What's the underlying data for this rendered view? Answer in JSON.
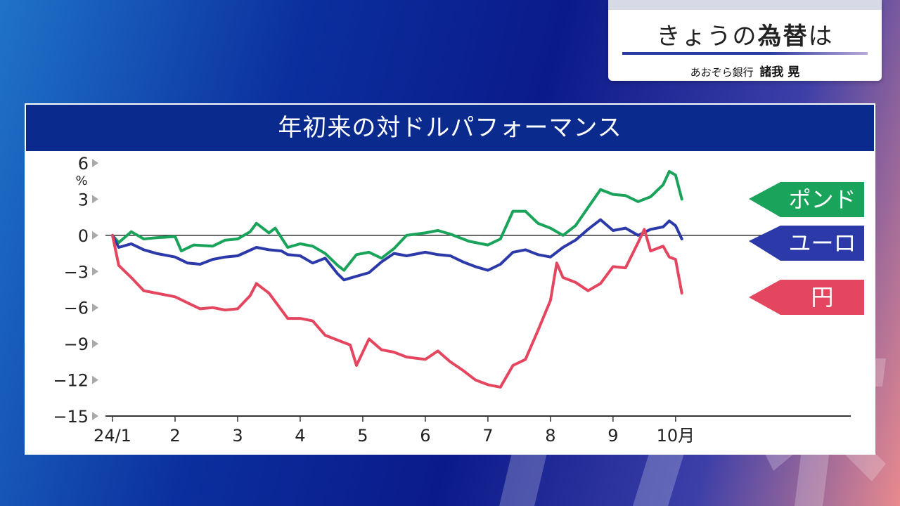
{
  "topic": {
    "title_plain1": "きょうの",
    "title_bold": "為替",
    "title_plain2": "は",
    "bank": "あおぞら銀行",
    "person": "諸我 晃"
  },
  "chart_data": {
    "type": "line",
    "title": "年初来の対ドルパフォーマンス",
    "ylabel": "%",
    "ylim": [
      -15,
      6
    ],
    "yticks": [
      6,
      3,
      0,
      -3,
      -6,
      -9,
      -12,
      -15
    ],
    "ytick_labels": [
      "6",
      "3",
      "0",
      "−3",
      "−6",
      "−9",
      "−12",
      "−15"
    ],
    "x_tick_labels": [
      "24/1",
      "2",
      "3",
      "4",
      "5",
      "6",
      "7",
      "8",
      "9",
      "10月"
    ],
    "x_tick_positions": [
      1.0,
      2.0,
      3.0,
      4.0,
      5.0,
      6.0,
      7.0,
      8.0,
      9.0,
      10.0
    ],
    "xlim": [
      1.0,
      12.8
    ],
    "series": [
      {
        "name": "ポンド",
        "color": "#1aa35a",
        "x": [
          1.0,
          1.1,
          1.3,
          1.5,
          1.7,
          2.0,
          2.1,
          2.3,
          2.6,
          2.8,
          3.0,
          3.2,
          3.3,
          3.5,
          3.6,
          3.8,
          4.0,
          4.2,
          4.4,
          4.6,
          4.7,
          4.9,
          5.1,
          5.3,
          5.5,
          5.7,
          6.0,
          6.2,
          6.4,
          6.7,
          7.0,
          7.2,
          7.4,
          7.6,
          7.8,
          8.0,
          8.2,
          8.4,
          8.6,
          8.8,
          9.0,
          9.2,
          9.4,
          9.6,
          9.8,
          9.9,
          10.0,
          10.1
        ],
        "values": [
          0.0,
          -0.6,
          0.3,
          -0.3,
          -0.2,
          -0.1,
          -1.3,
          -0.8,
          -0.9,
          -0.4,
          -0.3,
          0.3,
          1.0,
          0.2,
          0.6,
          -1.0,
          -0.7,
          -0.9,
          -1.5,
          -2.5,
          -2.9,
          -1.6,
          -1.4,
          -1.9,
          -1.1,
          0.0,
          0.2,
          0.4,
          0.1,
          -0.5,
          -0.8,
          -0.3,
          2.0,
          2.0,
          1.0,
          0.6,
          0.0,
          0.8,
          2.3,
          3.8,
          3.4,
          3.3,
          2.8,
          3.2,
          4.2,
          5.3,
          5.0,
          3.0
        ]
      },
      {
        "name": "ユーロ",
        "color": "#2c39a8",
        "x": [
          1.0,
          1.1,
          1.3,
          1.5,
          1.7,
          2.0,
          2.2,
          2.4,
          2.6,
          2.8,
          3.0,
          3.3,
          3.5,
          3.7,
          3.8,
          4.0,
          4.2,
          4.4,
          4.6,
          4.7,
          4.9,
          5.1,
          5.3,
          5.5,
          5.7,
          6.0,
          6.2,
          6.4,
          6.6,
          6.8,
          7.0,
          7.2,
          7.4,
          7.6,
          7.8,
          8.0,
          8.2,
          8.4,
          8.6,
          8.8,
          9.0,
          9.2,
          9.4,
          9.6,
          9.8,
          9.9,
          10.0,
          10.1
        ],
        "values": [
          0.0,
          -1.0,
          -0.7,
          -1.2,
          -1.5,
          -1.8,
          -2.3,
          -2.4,
          -2.0,
          -1.8,
          -1.7,
          -1.0,
          -1.2,
          -1.3,
          -1.6,
          -1.7,
          -2.3,
          -1.9,
          -3.2,
          -3.7,
          -3.4,
          -3.1,
          -2.2,
          -1.5,
          -1.7,
          -1.4,
          -1.6,
          -1.7,
          -2.2,
          -2.6,
          -2.9,
          -2.4,
          -1.4,
          -1.2,
          -1.6,
          -1.8,
          -1.0,
          -0.4,
          0.5,
          1.3,
          0.4,
          0.6,
          0.0,
          0.5,
          0.7,
          1.2,
          0.8,
          -0.3
        ]
      },
      {
        "name": "円",
        "color": "#e5465f",
        "x": [
          1.0,
          1.1,
          1.3,
          1.5,
          1.7,
          2.0,
          2.2,
          2.4,
          2.6,
          2.8,
          3.0,
          3.2,
          3.3,
          3.5,
          3.6,
          3.8,
          4.0,
          4.2,
          4.4,
          4.6,
          4.8,
          4.9,
          5.1,
          5.3,
          5.5,
          5.7,
          6.0,
          6.2,
          6.4,
          6.6,
          6.8,
          7.0,
          7.2,
          7.4,
          7.6,
          7.8,
          8.0,
          8.1,
          8.2,
          8.4,
          8.6,
          8.8,
          9.0,
          9.2,
          9.4,
          9.5,
          9.6,
          9.8,
          9.9,
          10.0,
          10.1
        ],
        "values": [
          0.0,
          -2.5,
          -3.5,
          -4.6,
          -4.8,
          -5.1,
          -5.6,
          -6.1,
          -6.0,
          -6.2,
          -6.1,
          -5.0,
          -4.0,
          -4.8,
          -5.5,
          -6.9,
          -6.9,
          -7.1,
          -8.3,
          -8.7,
          -9.1,
          -10.8,
          -8.6,
          -9.5,
          -9.7,
          -10.1,
          -10.3,
          -9.6,
          -10.5,
          -11.2,
          -12.0,
          -12.4,
          -12.6,
          -10.8,
          -10.3,
          -7.9,
          -5.4,
          -2.3,
          -3.5,
          -3.9,
          -4.6,
          -4.0,
          -2.6,
          -2.7,
          -0.6,
          0.5,
          -1.3,
          -0.9,
          -1.8,
          -2.0,
          -4.8
        ]
      }
    ],
    "legend_placement": "right, at line ends",
    "grid": false
  }
}
